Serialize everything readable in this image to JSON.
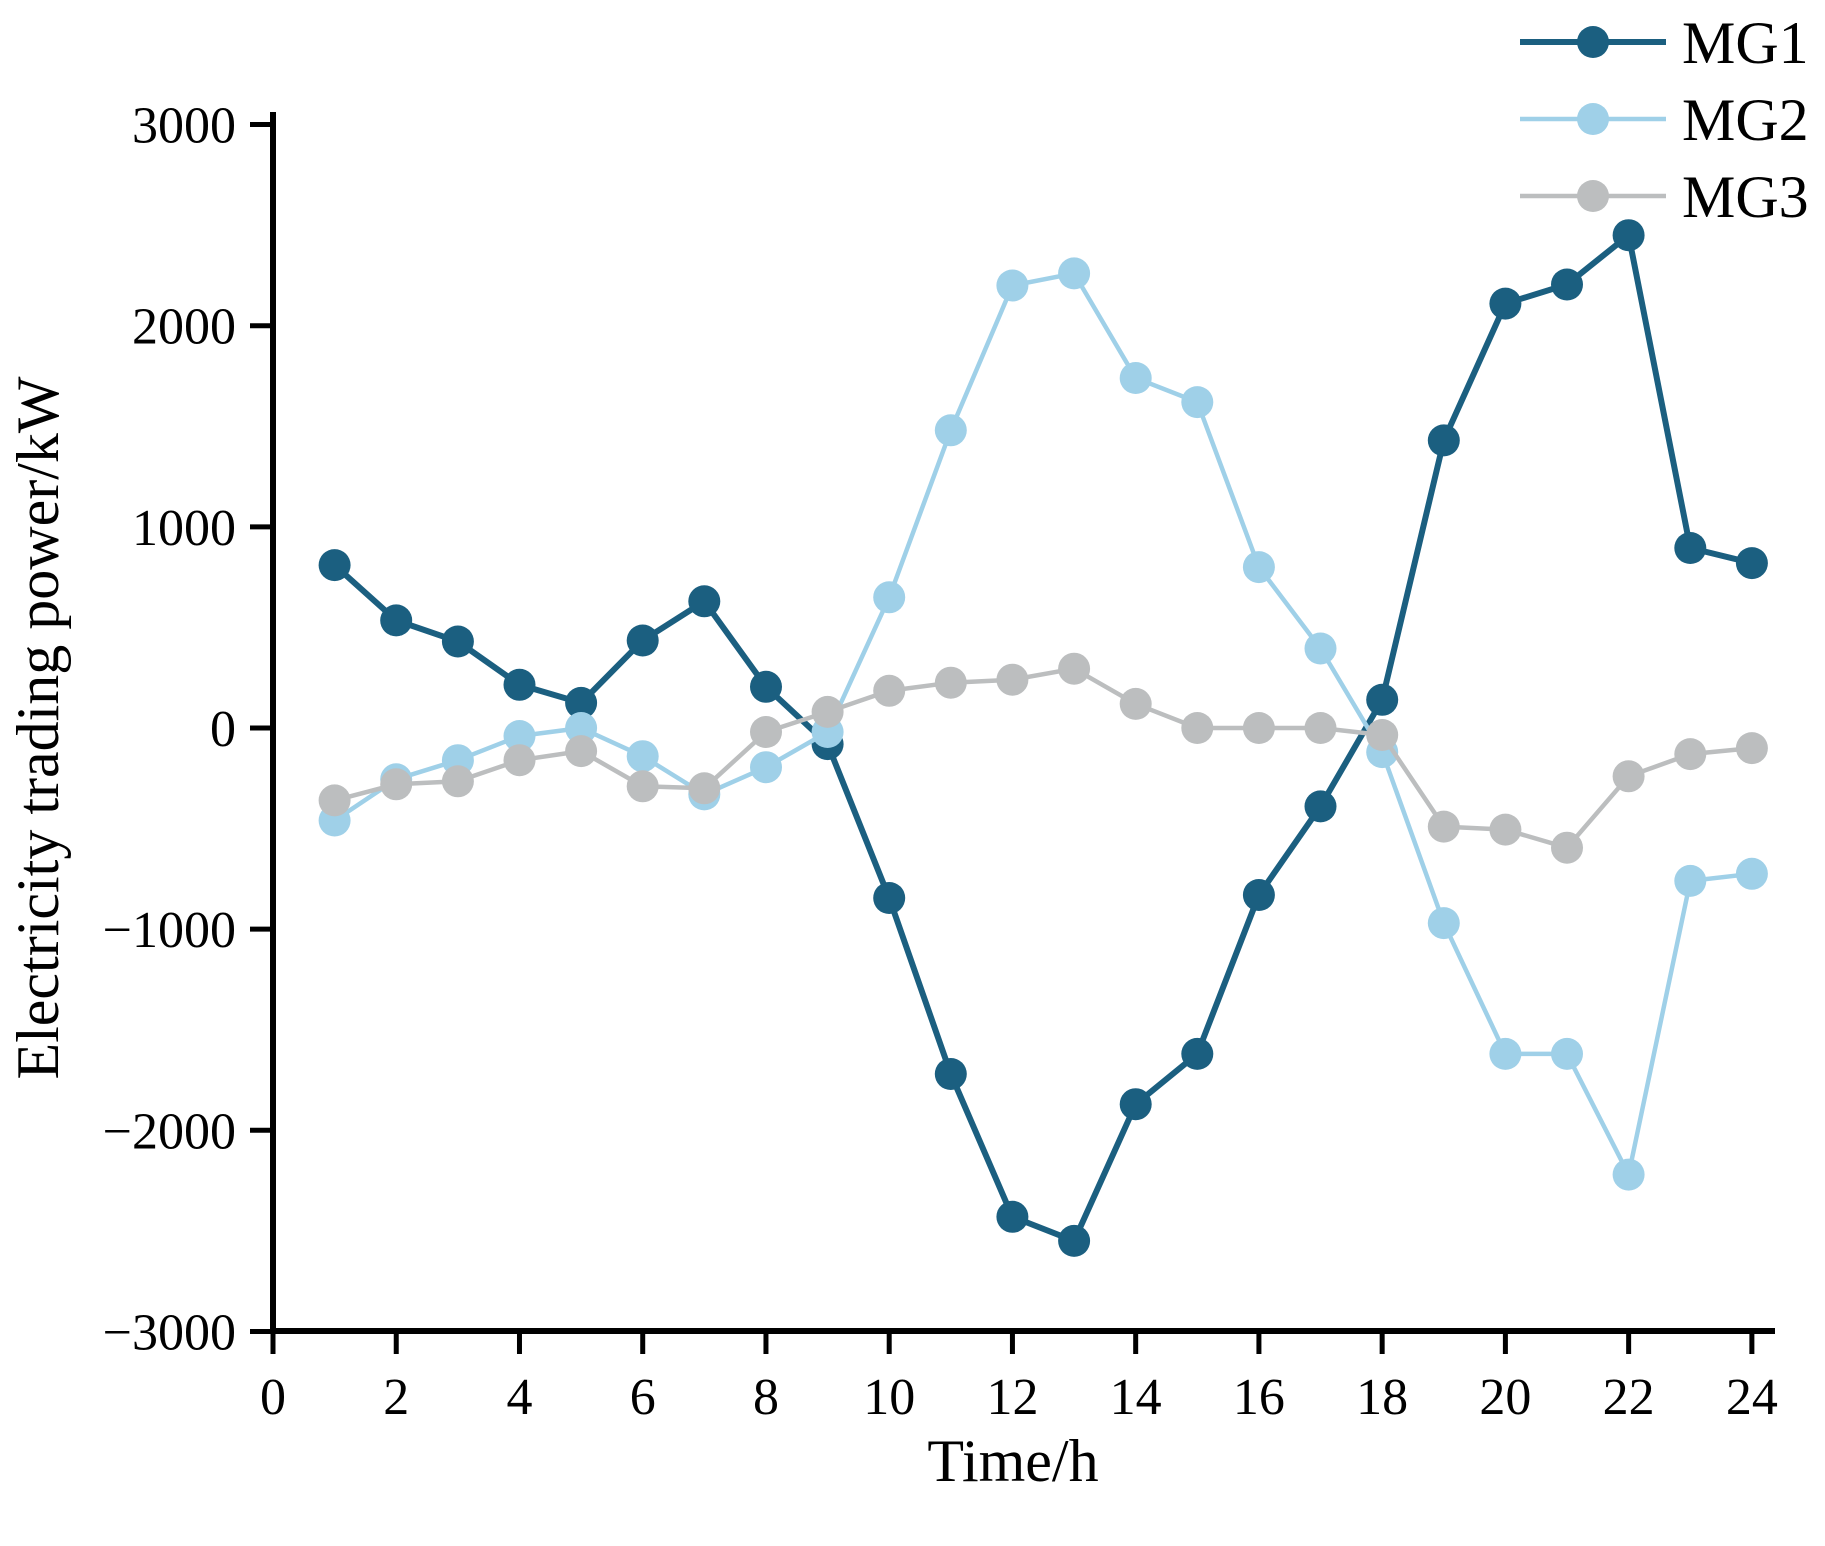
{
  "background": "#ffffff",
  "axis_color": "#000000",
  "chart_data": {
    "type": "line",
    "title": "",
    "xlabel": "Time/h",
    "ylabel": "Electricity trading power/kW",
    "xlim": [
      0,
      24.6
    ],
    "ylim": [
      -3000,
      3000
    ],
    "grid": false,
    "legend_position": "top-right",
    "x_tick_values": [
      0,
      2,
      4,
      6,
      8,
      10,
      12,
      14,
      16,
      18,
      20,
      22,
      24
    ],
    "x_tick_labels": [
      "0",
      "2",
      "4",
      "6",
      "8",
      "10",
      "12",
      "14",
      "16",
      "18",
      "20",
      "22",
      "24"
    ],
    "y_tick_values": [
      3000,
      2000,
      1000,
      0,
      -1000,
      -2000,
      -3000
    ],
    "y_tick_labels": [
      "3000",
      "2000",
      "1000",
      "0",
      "−1000",
      "−2000",
      "−3000"
    ],
    "x_unit": "h",
    "y_unit": "kW",
    "x": [
      1,
      2,
      3,
      4,
      5,
      6,
      7,
      8,
      9,
      10,
      11,
      12,
      13,
      14,
      15,
      16,
      17,
      18,
      19,
      20,
      21,
      22,
      23,
      24
    ],
    "series": [
      {
        "name": "MG1",
        "color": "#1b5f80",
        "marker": "circle",
        "values": [
          810,
          535,
          430,
          215,
          125,
          435,
          630,
          205,
          -80,
          -845,
          -1720,
          -2430,
          -2550,
          -1870,
          -1620,
          -830,
          -390,
          140,
          1430,
          2110,
          2205,
          2450,
          895,
          820
        ]
      },
      {
        "name": "MG2",
        "color": "#9fd0e8",
        "marker": "circle",
        "values": [
          -460,
          -255,
          -160,
          -40,
          0,
          -140,
          -330,
          -195,
          -20,
          650,
          1480,
          2200,
          2260,
          1740,
          1620,
          800,
          395,
          -120,
          -970,
          -1620,
          -1620,
          -2220,
          -760,
          -725
        ]
      },
      {
        "name": "MG3",
        "color": "#bcbebf",
        "marker": "circle",
        "values": [
          -360,
          -280,
          -265,
          -160,
          -115,
          -290,
          -300,
          -20,
          80,
          185,
          225,
          240,
          295,
          120,
          0,
          0,
          0,
          -35,
          -490,
          -505,
          -595,
          -240,
          -130,
          -100
        ]
      }
    ]
  }
}
